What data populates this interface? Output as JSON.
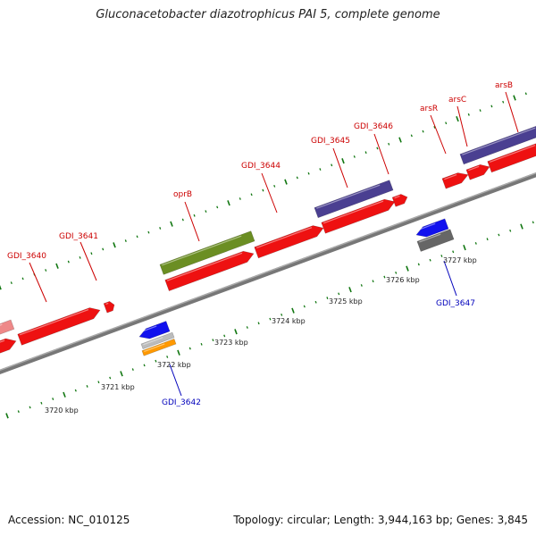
{
  "title": "Gluconacetobacter diazotrophicus PAI 5, complete genome",
  "footer": {
    "accession": "Accession: NC_010125",
    "summary": "Topology: circular; Length: 3,944,163 bp; Genes: 3,845"
  },
  "colors": {
    "cds_forward": "#ee1111",
    "cds_reverse": "#ee1111",
    "label_forward": "#cc0000",
    "label_reverse": "#0000bb",
    "backbone": "#888888",
    "tick": "#117711",
    "cog_purple": "#4a3f91",
    "cog_green": "#6b8e23",
    "cog_blue": "#1111ee",
    "cog_gray": "#666666",
    "cog_orange": "#ff9900",
    "cog_lightgray": "#bbbbbb",
    "cog_pink": "#ee8888"
  },
  "forward_genes": [
    {
      "label": "GDI_3640"
    },
    {
      "label": "GDI_3641"
    },
    {
      "label": "oprB"
    },
    {
      "label": "GDI_3644"
    },
    {
      "label": "GDI_3645"
    },
    {
      "label": "GDI_3646"
    },
    {
      "label": "arsR"
    },
    {
      "label": "arsC"
    },
    {
      "label": "arsB"
    }
  ],
  "reverse_genes": [
    {
      "label": "GDI_3642"
    },
    {
      "label": "GDI_3647"
    }
  ],
  "scale_labels": [
    "3720 kbp",
    "3721 kbp",
    "3722 kbp",
    "3723 kbp",
    "3724 kbp",
    "3725 kbp",
    "3726 kbp",
    "3727 kbp"
  ]
}
